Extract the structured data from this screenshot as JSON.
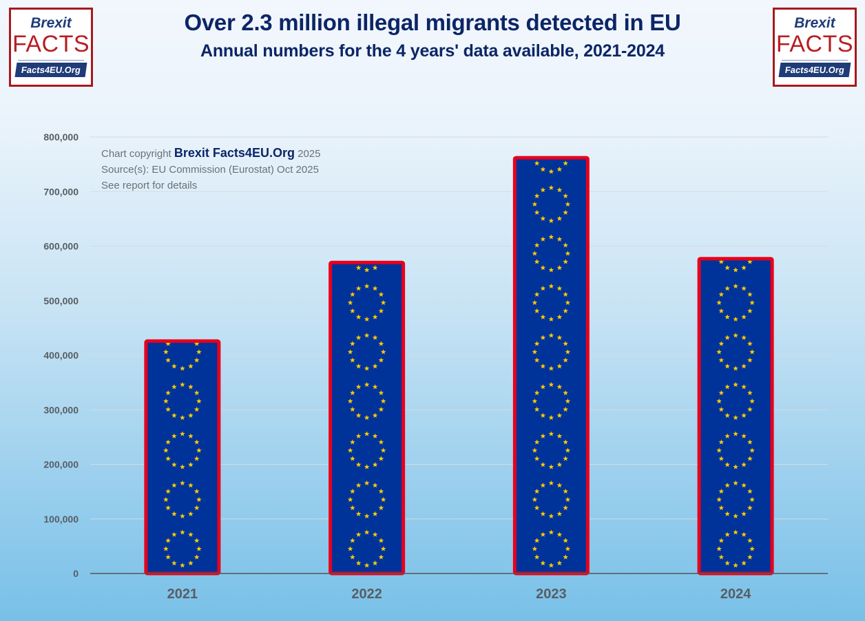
{
  "header": {
    "title": "Over 2.3 million illegal migrants detected in EU",
    "subtitle": "Annual numbers for the 4 years' data available, 2021-2024"
  },
  "logos": {
    "line1": "Brexit",
    "line2": "FACTS",
    "line3": "Facts4EU.Org"
  },
  "credits": {
    "copyright_prefix": "Chart copyright",
    "copyright_brand": "Brexit Facts4EU.Org",
    "copyright_year": "2025",
    "source": "Source(s): EU Commission (Eurostat) Oct 2025",
    "note": "See report for details"
  },
  "colors": {
    "bar_fill": "#003399",
    "bar_border": "#e8001c",
    "star": "#ffcc00",
    "title": "#0c2566"
  },
  "chart_data": {
    "type": "bar",
    "title": "Over 2.3 million illegal migrants detected in EU",
    "subtitle": "Annual numbers for the 4 years' data available, 2021-2024",
    "categories": [
      "2021",
      "2022",
      "2023",
      "2024"
    ],
    "values": [
      426000,
      570000,
      762000,
      577000
    ],
    "xlabel": "",
    "ylabel": "",
    "ylim": [
      0,
      800000
    ],
    "yticks": [
      0,
      100000,
      200000,
      300000,
      400000,
      500000,
      600000,
      700000,
      800000
    ],
    "ytick_labels": [
      "0",
      "100,000",
      "200,000",
      "300,000",
      "400,000",
      "500,000",
      "600,000",
      "700,000",
      "800,000"
    ],
    "grid": true,
    "legend": "none",
    "bar_style": "EU flag pattern (blue with circles of gold stars), red outline"
  }
}
